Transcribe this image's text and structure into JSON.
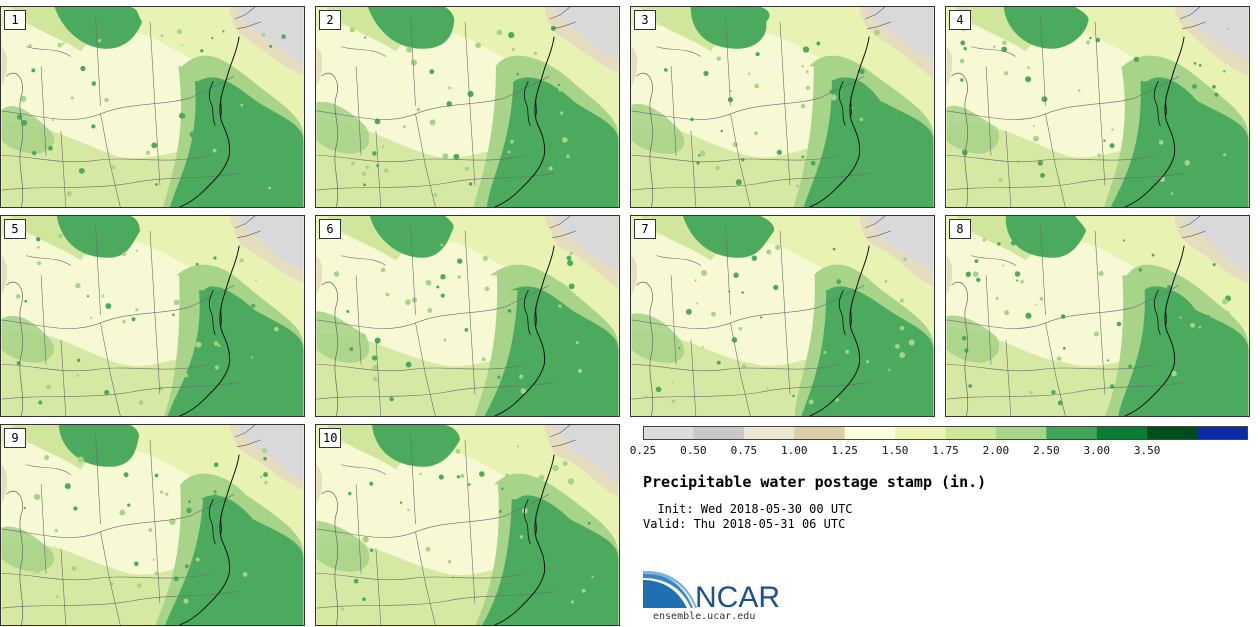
{
  "panels": [
    {
      "label": "1"
    },
    {
      "label": "2"
    },
    {
      "label": "3"
    },
    {
      "label": "4"
    },
    {
      "label": "5"
    },
    {
      "label": "6"
    },
    {
      "label": "7"
    },
    {
      "label": "8"
    },
    {
      "label": "9"
    },
    {
      "label": "10"
    }
  ],
  "colorbar": {
    "ticks": [
      "0.25",
      "0.50",
      "0.75",
      "1.00",
      "1.25",
      "1.50",
      "1.75",
      "2.00",
      "2.50",
      "3.00",
      "3.50"
    ],
    "colors": [
      "#dcdcdc",
      "#c8c8c8",
      "#ece7d4",
      "#dccfa8",
      "#fdfde0",
      "#eef4b4",
      "#cce69a",
      "#a7d68a",
      "#41a65a",
      "#0a7d34",
      "#004d1c",
      "#0b2aa6"
    ]
  },
  "title": "Precipitable water postage stamp (in.)",
  "init_line": "  Init: Wed 2018-05-30 00 UTC",
  "valid_line": "Valid: Thu 2018-05-31 06 UTC",
  "logo": {
    "text": "NCAR",
    "url": "ensemble.ucar.edu"
  }
}
